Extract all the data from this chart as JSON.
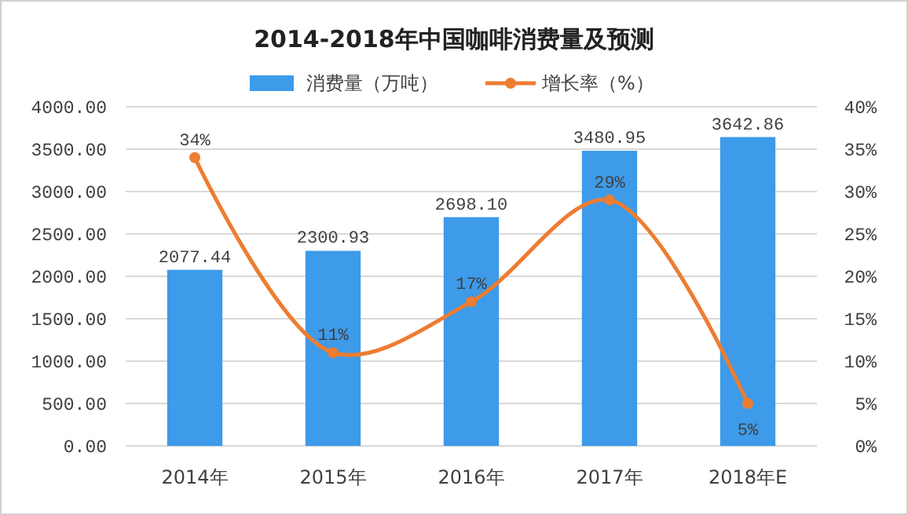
{
  "chart_data": {
    "type": "bar",
    "title": "2014-2018年中国咖啡消费量及预测",
    "categories": [
      "2014年",
      "2015年",
      "2016年",
      "2017年",
      "2018年E"
    ],
    "series": [
      {
        "name": "消费量（万吨）",
        "color": "#3d9be9",
        "values": [
          2077.44,
          2300.93,
          2698.1,
          3480.95,
          3642.86
        ],
        "value_labels": [
          "2077.44",
          "2300.93",
          "2698.10",
          "3480.95",
          "3642.86"
        ]
      },
      {
        "name": "增长率（%）",
        "type": "line",
        "axis": "y2",
        "color": "#ed7d31",
        "values": [
          34,
          11,
          17,
          29,
          5
        ],
        "value_labels": [
          "34%",
          "11%",
          "17%",
          "29%",
          "5%"
        ],
        "marker": "circle"
      }
    ],
    "ylim": [
      0,
      4000
    ],
    "yticks": [
      {
        "value": 0,
        "label": "0.00"
      },
      {
        "value": 500,
        "label": "500.00"
      },
      {
        "value": 1000,
        "label": "1000.00"
      },
      {
        "value": 1500,
        "label": "1500.00"
      },
      {
        "value": 2000,
        "label": "2000.00"
      },
      {
        "value": 2500,
        "label": "2500.00"
      },
      {
        "value": 3000,
        "label": "3000.00"
      },
      {
        "value": 3500,
        "label": "3500.00"
      },
      {
        "value": 4000,
        "label": "4000.00"
      }
    ],
    "y2lim": [
      0,
      40
    ],
    "y2ticks": [
      {
        "value": 0,
        "label": "0%"
      },
      {
        "value": 5,
        "label": "5%"
      },
      {
        "value": 10,
        "label": "10%"
      },
      {
        "value": 15,
        "label": "15%"
      },
      {
        "value": 20,
        "label": "20%"
      },
      {
        "value": 25,
        "label": "25%"
      },
      {
        "value": 30,
        "label": "30%"
      },
      {
        "value": 35,
        "label": "35%"
      },
      {
        "value": 40,
        "label": "40%"
      }
    ],
    "grid": "y",
    "legend": "top"
  }
}
